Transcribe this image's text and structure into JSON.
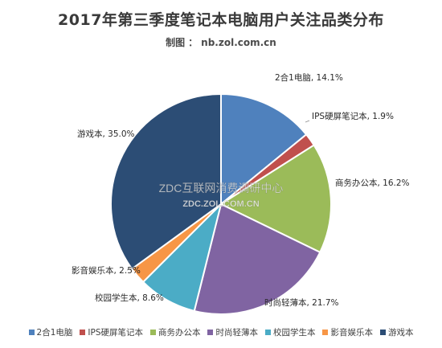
{
  "title": "2017年第三季度笔记本电脑用户关注品类分布",
  "subtitle": {
    "label": "制图",
    "sep": "：",
    "value": "nb.zol.com.cn"
  },
  "watermark": {
    "line1": "ZDC互联网消费调研中心",
    "line2": "ZDC.ZOL.COM.CN"
  },
  "chart_data": {
    "type": "pie",
    "start_angle_deg": 0,
    "direction": "clockwise",
    "legend_position": "bottom",
    "categories": [
      "2合1电脑",
      "IPS硬屏笔记本",
      "商务办公本",
      "时尚轻薄本",
      "校园学生本",
      "影音娱乐本",
      "游戏本"
    ],
    "values": [
      14.1,
      1.9,
      16.2,
      21.7,
      8.6,
      2.5,
      35.0
    ],
    "data_labels": [
      "2合1电脑, 14.1%",
      "IPS硬屏笔记本, 1.9%",
      "商务办公本, 16.2%",
      "时尚轻薄本, 21.7%",
      "校园学生本, 8.6%",
      "影音娱乐本, 2.5%",
      "游戏本, 35.0%"
    ],
    "colors": [
      "#4f81bd",
      "#c0504d",
      "#9bbb59",
      "#8064a2",
      "#4bacc6",
      "#f79646",
      "#2c4d75"
    ]
  }
}
